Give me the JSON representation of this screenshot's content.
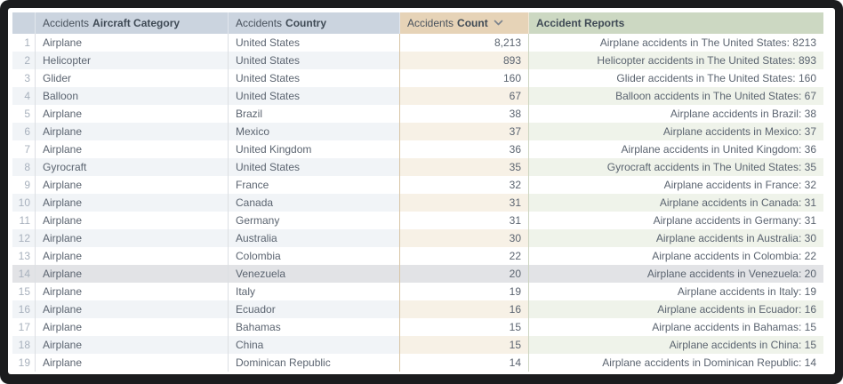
{
  "table": {
    "columns": [
      {
        "prefix": "",
        "label": ""
      },
      {
        "prefix": "Accidents",
        "label": "Aircraft Category"
      },
      {
        "prefix": "Accidents",
        "label": "Country"
      },
      {
        "prefix": "Accidents",
        "label": "Count",
        "sorted": "descending"
      },
      {
        "prefix": "",
        "label": "Accident Reports"
      }
    ],
    "selected_row": 14,
    "rows": [
      {
        "num": 1,
        "category": "Airplane",
        "country": "United States",
        "count": "8,213",
        "report": "Airplane accidents in The United States: 8213"
      },
      {
        "num": 2,
        "category": "Helicopter",
        "country": "United States",
        "count": "893",
        "report": "Helicopter accidents in The United States: 893"
      },
      {
        "num": 3,
        "category": "Glider",
        "country": "United States",
        "count": "160",
        "report": "Glider accidents in The United States: 160"
      },
      {
        "num": 4,
        "category": "Balloon",
        "country": "United States",
        "count": "67",
        "report": "Balloon accidents in The United States: 67"
      },
      {
        "num": 5,
        "category": "Airplane",
        "country": "Brazil",
        "count": "38",
        "report": "Airplane accidents in Brazil: 38"
      },
      {
        "num": 6,
        "category": "Airplane",
        "country": "Mexico",
        "count": "37",
        "report": "Airplane accidents in Mexico: 37"
      },
      {
        "num": 7,
        "category": "Airplane",
        "country": "United Kingdom",
        "count": "36",
        "report": "Airplane accidents in United Kingdom: 36"
      },
      {
        "num": 8,
        "category": "Gyrocraft",
        "country": "United States",
        "count": "35",
        "report": "Gyrocraft accidents in The United States: 35"
      },
      {
        "num": 9,
        "category": "Airplane",
        "country": "France",
        "count": "32",
        "report": "Airplane accidents in France: 32"
      },
      {
        "num": 10,
        "category": "Airplane",
        "country": "Canada",
        "count": "31",
        "report": "Airplane accidents in Canada: 31"
      },
      {
        "num": 11,
        "category": "Airplane",
        "country": "Germany",
        "count": "31",
        "report": "Airplane accidents in Germany: 31"
      },
      {
        "num": 12,
        "category": "Airplane",
        "country": "Australia",
        "count": "30",
        "report": "Airplane accidents in Australia: 30"
      },
      {
        "num": 13,
        "category": "Airplane",
        "country": "Colombia",
        "count": "22",
        "report": "Airplane accidents in Colombia: 22"
      },
      {
        "num": 14,
        "category": "Airplane",
        "country": "Venezuela",
        "count": "20",
        "report": "Airplane accidents in Venezuela: 20"
      },
      {
        "num": 15,
        "category": "Airplane",
        "country": "Italy",
        "count": "19",
        "report": "Airplane accidents in Italy: 19"
      },
      {
        "num": 16,
        "category": "Airplane",
        "country": "Ecuador",
        "count": "16",
        "report": "Airplane accidents in Ecuador: 16"
      },
      {
        "num": 17,
        "category": "Airplane",
        "country": "Bahamas",
        "count": "15",
        "report": "Airplane accidents in Bahamas: 15"
      },
      {
        "num": 18,
        "category": "Airplane",
        "country": "China",
        "count": "15",
        "report": "Airplane accidents in China: 15"
      },
      {
        "num": 19,
        "category": "Airplane",
        "country": "Dominican Republic",
        "count": "14",
        "report": "Airplane accidents in Dominican Republic: 14"
      }
    ]
  },
  "colors": {
    "frame": "#1b1c1e",
    "header_dimension": "#cbd4df",
    "header_count": "#e6d3b7",
    "header_reports": "#ccd8c2",
    "row_tint_dimension": "#f1f4f7",
    "row_tint_count": "#f7f1e6",
    "row_tint_reports": "#eff3ea",
    "selected_row": "#e2e3e6",
    "text": "#5b6470"
  },
  "icons": {
    "sort_descending": "chevron-down"
  }
}
